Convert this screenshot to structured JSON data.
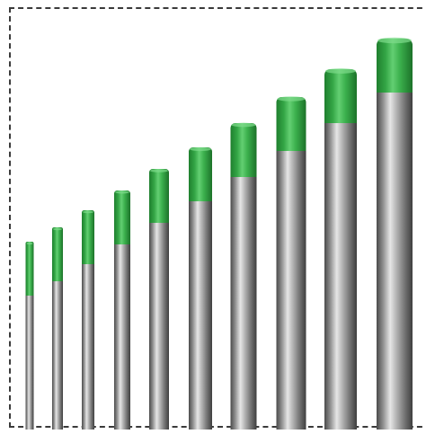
{
  "image": {
    "subject": "tungsten-electrodes",
    "count": 10,
    "tip_color": "#3aa84a",
    "rod_color": "#9a9a9a",
    "frame_style": "dashed"
  }
}
